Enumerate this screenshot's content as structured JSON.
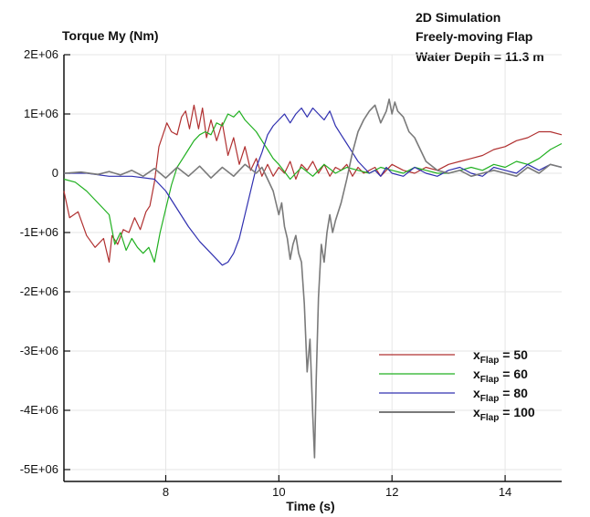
{
  "chart_data": {
    "type": "line",
    "title": "Torque My (Nm)",
    "annotation_lines": [
      "2D Simulation",
      "Freely-moving Flap",
      "Water Depth = 11.3 m"
    ],
    "xlabel": "Time (s)",
    "ylabel": "Torque My (Nm)",
    "xlim": [
      6.2,
      15.0
    ],
    "ylim": [
      -5200000,
      2000000
    ],
    "x_ticks": [
      8,
      10,
      12,
      14
    ],
    "x_tick_labels": [
      "8",
      "10",
      "12",
      "14"
    ],
    "y_ticks": [
      2000000,
      1000000,
      0,
      -1000000,
      -2000000,
      -3000000,
      -4000000,
      -5000000
    ],
    "y_tick_labels": [
      "2E+06",
      "1E+06",
      "0",
      "-1E+06",
      "-2E+06",
      "-3E+06",
      "-4E+06",
      "-5E+06"
    ],
    "grid": true,
    "legend_position": "bottom-right",
    "series": [
      {
        "label_main": "x",
        "label_sub": "Flap",
        "label_value": "= 50",
        "color": "#b03030",
        "x": [
          6.2,
          6.3,
          6.45,
          6.6,
          6.75,
          6.9,
          7.0,
          7.05,
          7.15,
          7.25,
          7.35,
          7.45,
          7.55,
          7.65,
          7.72,
          7.8,
          7.88,
          7.95,
          8.02,
          8.1,
          8.2,
          8.28,
          8.35,
          8.42,
          8.5,
          8.58,
          8.65,
          8.72,
          8.8,
          8.9,
          9.0,
          9.1,
          9.2,
          9.3,
          9.4,
          9.5,
          9.6,
          9.7,
          9.8,
          9.9,
          10.0,
          10.1,
          10.2,
          10.3,
          10.4,
          10.5,
          10.6,
          10.7,
          10.8,
          10.9,
          11.0,
          11.1,
          11.2,
          11.3,
          11.4,
          11.5,
          11.6,
          11.7,
          11.8,
          11.9,
          12.0,
          12.2,
          12.4,
          12.6,
          12.8,
          13.0,
          13.2,
          13.4,
          13.6,
          13.8,
          14.0,
          14.2,
          14.4,
          14.6,
          14.8,
          15.0
        ],
        "y": [
          -300000,
          -750000,
          -650000,
          -1050000,
          -1250000,
          -1100000,
          -1500000,
          -1050000,
          -1200000,
          -950000,
          -1000000,
          -750000,
          -950000,
          -650000,
          -550000,
          -150000,
          450000,
          650000,
          850000,
          700000,
          650000,
          950000,
          1050000,
          750000,
          1150000,
          750000,
          1100000,
          600000,
          900000,
          550000,
          850000,
          300000,
          600000,
          150000,
          450000,
          50000,
          250000,
          -50000,
          150000,
          -50000,
          100000,
          0,
          200000,
          -100000,
          150000,
          50000,
          200000,
          0,
          150000,
          -50000,
          100000,
          50000,
          150000,
          -50000,
          100000,
          0,
          50000,
          100000,
          -50000,
          50000,
          150000,
          50000,
          0,
          100000,
          50000,
          150000,
          200000,
          250000,
          300000,
          400000,
          450000,
          550000,
          600000,
          700000,
          700000,
          650000
        ]
      },
      {
        "label_main": "x",
        "label_sub": "Flap",
        "label_value": "= 60",
        "color": "#20b020",
        "x": [
          6.2,
          6.4,
          6.6,
          6.8,
          7.0,
          7.1,
          7.2,
          7.3,
          7.4,
          7.5,
          7.6,
          7.7,
          7.8,
          7.9,
          8.0,
          8.1,
          8.2,
          8.3,
          8.4,
          8.5,
          8.6,
          8.7,
          8.8,
          8.9,
          9.0,
          9.1,
          9.2,
          9.3,
          9.4,
          9.5,
          9.6,
          9.7,
          9.8,
          9.9,
          10.0,
          10.2,
          10.4,
          10.6,
          10.8,
          11.0,
          11.2,
          11.4,
          11.6,
          11.8,
          12.0,
          12.2,
          12.4,
          12.6,
          12.8,
          13.0,
          13.2,
          13.4,
          13.6,
          13.8,
          14.0,
          14.2,
          14.4,
          14.6,
          14.8,
          15.0
        ],
        "y": [
          -100000,
          -150000,
          -300000,
          -500000,
          -700000,
          -1200000,
          -1000000,
          -1300000,
          -1100000,
          -1250000,
          -1350000,
          -1250000,
          -1500000,
          -1000000,
          -600000,
          -200000,
          100000,
          250000,
          400000,
          550000,
          650000,
          700000,
          650000,
          850000,
          800000,
          1000000,
          950000,
          1050000,
          900000,
          800000,
          700000,
          550000,
          400000,
          250000,
          150000,
          -100000,
          100000,
          -50000,
          150000,
          0,
          100000,
          50000,
          0,
          100000,
          50000,
          0,
          100000,
          50000,
          0,
          0,
          50000,
          100000,
          50000,
          150000,
          100000,
          200000,
          150000,
          250000,
          400000,
          500000
        ]
      },
      {
        "label_main": "x",
        "label_sub": "Flap",
        "label_value": "= 80",
        "color": "#3030b0",
        "x": [
          6.2,
          6.6,
          7.0,
          7.4,
          7.8,
          8.0,
          8.2,
          8.4,
          8.6,
          8.8,
          9.0,
          9.1,
          9.2,
          9.3,
          9.4,
          9.5,
          9.6,
          9.7,
          9.8,
          9.9,
          10.0,
          10.1,
          10.2,
          10.3,
          10.4,
          10.5,
          10.6,
          10.7,
          10.8,
          10.9,
          11.0,
          11.1,
          11.2,
          11.3,
          11.4,
          11.5,
          11.6,
          11.7,
          11.8,
          11.9,
          12.0,
          12.2,
          12.4,
          12.6,
          12.8,
          13.0,
          13.2,
          13.4,
          13.6,
          13.8,
          14.0,
          14.2,
          14.4,
          14.6,
          14.8,
          15.0
        ],
        "y": [
          0,
          0,
          -50000,
          -50000,
          -100000,
          -300000,
          -600000,
          -900000,
          -1150000,
          -1350000,
          -1550000,
          -1500000,
          -1350000,
          -1100000,
          -700000,
          -300000,
          100000,
          350000,
          650000,
          800000,
          900000,
          1000000,
          850000,
          1000000,
          1100000,
          950000,
          1100000,
          1000000,
          900000,
          1050000,
          800000,
          650000,
          500000,
          350000,
          200000,
          100000,
          0,
          50000,
          -50000,
          100000,
          0,
          -50000,
          100000,
          0,
          -50000,
          50000,
          100000,
          0,
          -50000,
          100000,
          50000,
          0,
          150000,
          50000,
          150000,
          100000
        ]
      },
      {
        "label_main": "x",
        "label_sub": "Flap",
        "label_value": "= 100",
        "color": "#7a7a7a",
        "x": [
          6.2,
          6.5,
          6.8,
          7.0,
          7.2,
          7.4,
          7.6,
          7.8,
          8.0,
          8.2,
          8.4,
          8.6,
          8.8,
          9.0,
          9.2,
          9.4,
          9.6,
          9.7,
          9.8,
          9.9,
          10.0,
          10.05,
          10.1,
          10.15,
          10.2,
          10.25,
          10.3,
          10.35,
          10.4,
          10.45,
          10.5,
          10.55,
          10.6,
          10.63,
          10.66,
          10.7,
          10.75,
          10.8,
          10.85,
          10.9,
          10.95,
          11.0,
          11.1,
          11.2,
          11.3,
          11.4,
          11.5,
          11.6,
          11.7,
          11.8,
          11.9,
          11.95,
          12.0,
          12.05,
          12.1,
          12.2,
          12.3,
          12.4,
          12.5,
          12.6,
          12.8,
          13.0,
          13.2,
          13.4,
          13.6,
          13.8,
          14.0,
          14.2,
          14.4,
          14.6,
          14.8,
          15.0
        ],
        "y": [
          0,
          20000,
          -20000,
          30000,
          -30000,
          50000,
          -50000,
          80000,
          -80000,
          100000,
          -50000,
          120000,
          -80000,
          100000,
          -50000,
          150000,
          0,
          100000,
          -100000,
          -300000,
          -700000,
          -500000,
          -900000,
          -1100000,
          -1450000,
          -1200000,
          -1050000,
          -1350000,
          -1500000,
          -2200000,
          -3350000,
          -2800000,
          -4100000,
          -4800000,
          -3500000,
          -2100000,
          -1200000,
          -1500000,
          -1000000,
          -700000,
          -1000000,
          -800000,
          -500000,
          -100000,
          350000,
          700000,
          900000,
          1050000,
          1150000,
          850000,
          1050000,
          1250000,
          1000000,
          1200000,
          1050000,
          950000,
          700000,
          600000,
          400000,
          200000,
          50000,
          0,
          50000,
          -50000,
          0,
          50000,
          0,
          -50000,
          100000,
          0,
          150000,
          100000
        ]
      }
    ]
  }
}
